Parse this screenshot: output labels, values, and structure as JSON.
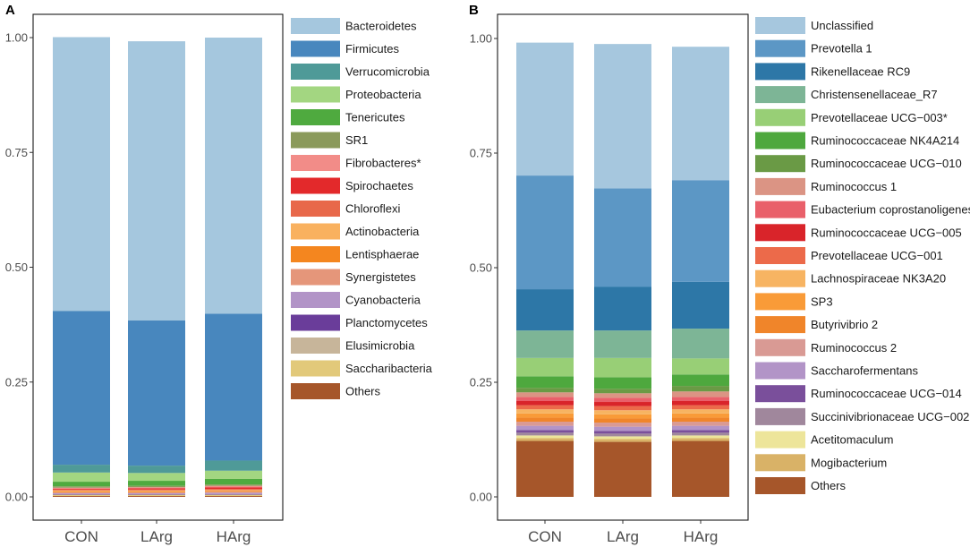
{
  "chart_data": [
    {
      "type": "bar",
      "stacked": true,
      "panel_label": "A",
      "categories": [
        "CON",
        "LArg",
        "HArg"
      ],
      "ylim": [
        0,
        1
      ],
      "yticks": [
        "0.00",
        "0.25",
        "0.50",
        "0.75",
        "1.00"
      ],
      "ytick_values": [
        0,
        0.25,
        0.5,
        0.75,
        1.0
      ],
      "legend_position": "right",
      "series": [
        {
          "name": "Others",
          "color": "#a6562a",
          "values": [
            0.002,
            0.002,
            0.002
          ]
        },
        {
          "name": "Saccharibacteria",
          "color": "#e2c97a",
          "values": [
            0.002,
            0.002,
            0.002
          ]
        },
        {
          "name": "Elusimicrobia",
          "color": "#c7b59a",
          "values": [
            0.001,
            0.001,
            0.001
          ]
        },
        {
          "name": "Planctomycetes",
          "color": "#6a3d9a",
          "values": [
            0.001,
            0.001,
            0.001
          ]
        },
        {
          "name": "Cyanobacteria",
          "color": "#b294c7",
          "values": [
            0.002,
            0.002,
            0.003
          ]
        },
        {
          "name": "Synergistetes",
          "color": "#e5967a",
          "values": [
            0.002,
            0.002,
            0.002
          ]
        },
        {
          "name": "Lentisphaerae",
          "color": "#f4861f",
          "values": [
            0.002,
            0.002,
            0.002
          ]
        },
        {
          "name": "Actinobacteria",
          "color": "#f9b15f",
          "values": [
            0.002,
            0.002,
            0.002
          ]
        },
        {
          "name": "Chloroflexi",
          "color": "#e8684a",
          "values": [
            0.002,
            0.002,
            0.002
          ]
        },
        {
          "name": "Spirochaetes",
          "color": "#e3292b",
          "values": [
            0.002,
            0.003,
            0.004
          ]
        },
        {
          "name": "Fibrobacteres*",
          "color": "#f28c88",
          "values": [
            0.002,
            0.002,
            0.003
          ]
        },
        {
          "name": "SR1",
          "color": "#8b9a5b",
          "values": [
            0.003,
            0.003,
            0.003
          ]
        },
        {
          "name": "Tenericutes",
          "color": "#4faa3f",
          "values": [
            0.01,
            0.011,
            0.012
          ]
        },
        {
          "name": "Proteobacteria",
          "color": "#a3d681",
          "values": [
            0.02,
            0.017,
            0.018
          ]
        },
        {
          "name": "Verrucomicrobia",
          "color": "#4f9a98",
          "values": [
            0.017,
            0.016,
            0.022
          ]
        },
        {
          "name": "Firmicutes",
          "color": "#4887be",
          "values": [
            0.335,
            0.316,
            0.32
          ]
        },
        {
          "name": "Bacteroidetes",
          "color": "#a5c7de",
          "values": [
            0.596,
            0.608,
            0.601
          ]
        }
      ],
      "legend": [
        "Bacteroidetes",
        "Firmicutes",
        "Verrucomicrobia",
        "Proteobacteria",
        "Tenericutes",
        "SR1",
        "Fibrobacteres*",
        "Spirochaetes",
        "Chloroflexi",
        "Actinobacteria",
        "Lentisphaerae",
        "Synergistetes",
        "Cyanobacteria",
        "Planctomycetes",
        "Elusimicrobia",
        "Saccharibacteria",
        "Others"
      ]
    },
    {
      "type": "bar",
      "stacked": true,
      "panel_label": "B",
      "categories": [
        "CON",
        "LArg",
        "HArg"
      ],
      "ylim": [
        0,
        1
      ],
      "yticks": [
        "0.00",
        "0.25",
        "0.50",
        "0.75",
        "1.00"
      ],
      "ytick_values": [
        0,
        0.25,
        0.5,
        0.75,
        1.0
      ],
      "legend_position": "right",
      "series": [
        {
          "name": "Others",
          "color": "#a6562a",
          "values": [
            0.122,
            0.12,
            0.122
          ]
        },
        {
          "name": "Mogibacterium",
          "color": "#d9b267",
          "values": [
            0.006,
            0.006,
            0.006
          ]
        },
        {
          "name": "Acetitomaculum",
          "color": "#ede59a",
          "values": [
            0.006,
            0.006,
            0.006
          ]
        },
        {
          "name": "Succinivibrionaceae UCG−002",
          "color": "#a0879c",
          "values": [
            0.006,
            0.006,
            0.006
          ]
        },
        {
          "name": "Ruminococcaceae UCG−014",
          "color": "#7a4f9b",
          "values": [
            0.006,
            0.006,
            0.006
          ]
        },
        {
          "name": "Saccharofermentans",
          "color": "#b294c7",
          "values": [
            0.009,
            0.009,
            0.009
          ]
        },
        {
          "name": "Ruminococcus 2",
          "color": "#d99a94",
          "values": [
            0.009,
            0.009,
            0.009
          ]
        },
        {
          "name": "Butyrivibrio 2",
          "color": "#f0852a",
          "values": [
            0.009,
            0.009,
            0.009
          ]
        },
        {
          "name": "SP3",
          "color": "#f99b38",
          "values": [
            0.009,
            0.009,
            0.009
          ]
        },
        {
          "name": "Lachnospiraceae NK3A20",
          "color": "#f7b462",
          "values": [
            0.009,
            0.009,
            0.009
          ]
        },
        {
          "name": "Prevotellaceae UCG−001",
          "color": "#ec6a4a",
          "values": [
            0.009,
            0.009,
            0.009
          ]
        },
        {
          "name": "Ruminococcaceae UCG−005",
          "color": "#d9242a",
          "values": [
            0.009,
            0.009,
            0.009
          ]
        },
        {
          "name": "Eubacterium coprostanoligenes",
          "color": "#e9606a",
          "values": [
            0.009,
            0.009,
            0.009
          ]
        },
        {
          "name": "Ruminococcus 1",
          "color": "#db9484",
          "values": [
            0.01,
            0.01,
            0.012
          ]
        },
        {
          "name": "Ruminococcaceae UCG−010",
          "color": "#6a9a45",
          "values": [
            0.01,
            0.01,
            0.012
          ]
        },
        {
          "name": "Ruminococcaceae NK4A214",
          "color": "#4ea83e",
          "values": [
            0.025,
            0.025,
            0.025
          ]
        },
        {
          "name": "Prevotellaceae UCG−003*",
          "color": "#98cf76",
          "values": [
            0.04,
            0.042,
            0.035
          ]
        },
        {
          "name": "Christensenellaceae_R7",
          "color": "#7db596",
          "values": [
            0.06,
            0.06,
            0.065
          ]
        },
        {
          "name": "Rikenellaceae RC9",
          "color": "#2d77a7",
          "values": [
            0.09,
            0.095,
            0.102
          ]
        },
        {
          "name": "Prevotella 1",
          "color": "#5c97c5",
          "values": [
            0.248,
            0.215,
            0.222
          ]
        },
        {
          "name": "Unclassified",
          "color": "#a6c7de",
          "values": [
            0.29,
            0.315,
            0.291
          ]
        }
      ],
      "legend": [
        "Unclassified",
        "Prevotella 1",
        "Rikenellaceae RC9",
        "Christensenellaceae_R7",
        "Prevotellaceae UCG−003*",
        "Ruminococcaceae NK4A214",
        "Ruminococcaceae UCG−010",
        "Ruminococcus 1",
        "Eubacterium coprostanoligenes",
        "Ruminococcaceae UCG−005",
        "Prevotellaceae UCG−001",
        "Lachnospiraceae NK3A20",
        "SP3",
        "Butyrivibrio 2",
        "Ruminococcus 2",
        "Saccharofermentans",
        "Ruminococcaceae UCG−014",
        "Succinivibrionaceae UCG−002",
        "Acetitomaculum",
        "Mogibacterium",
        "Others"
      ]
    }
  ]
}
